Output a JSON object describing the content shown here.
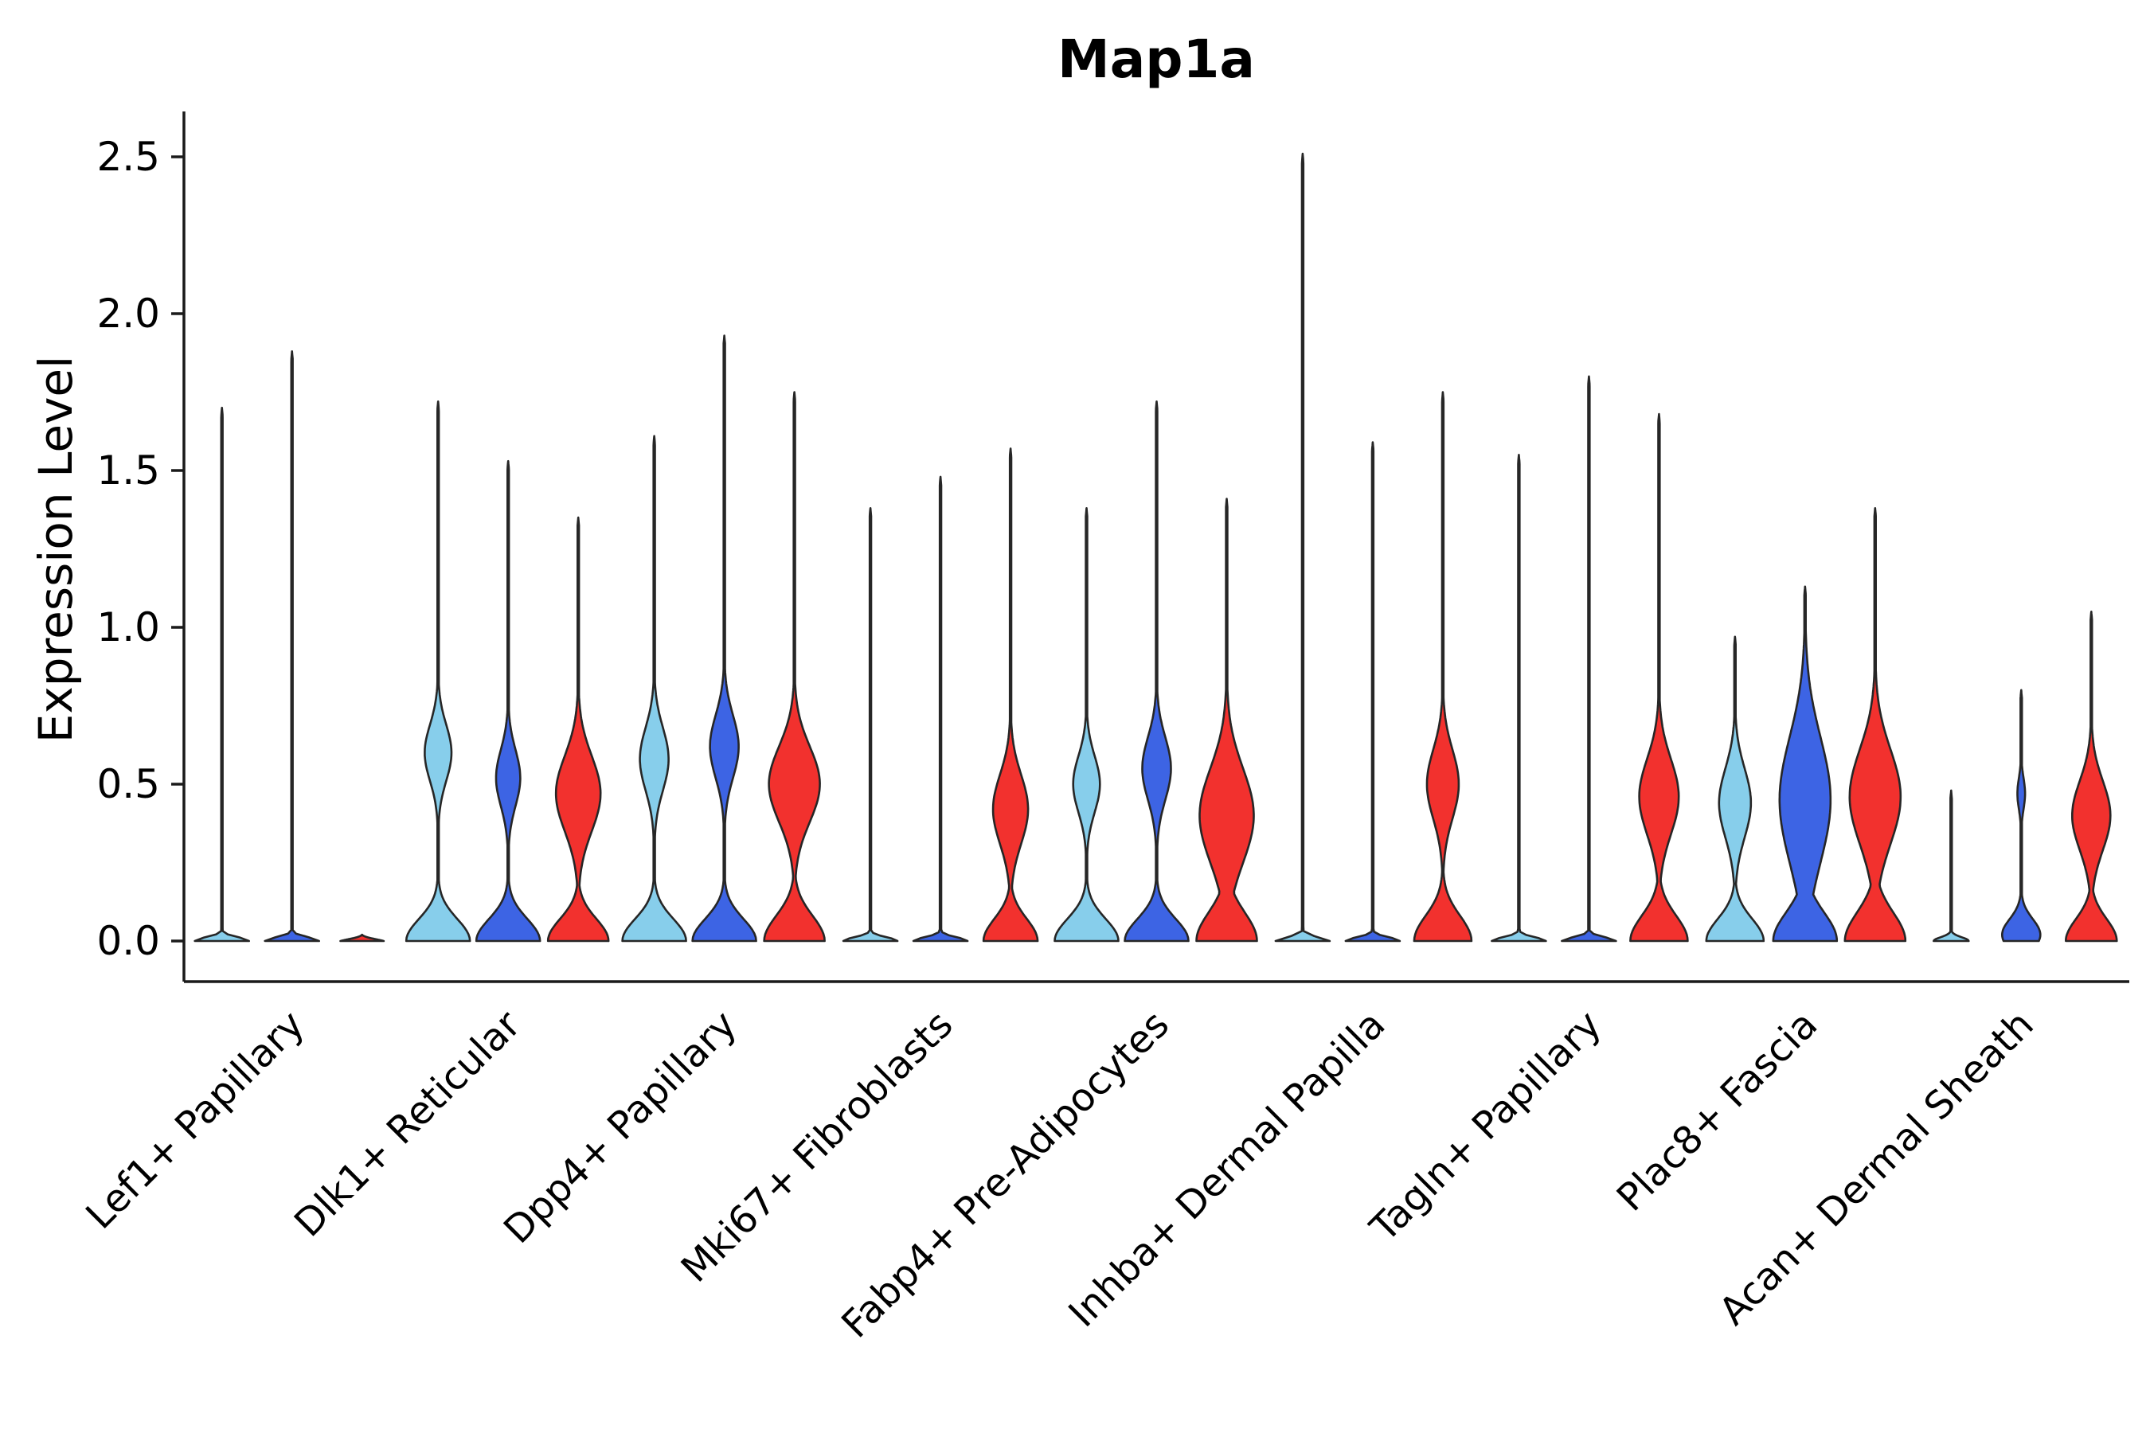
{
  "page": {
    "background_color": "#ffffff"
  },
  "chart_data": {
    "type": "violin",
    "title": "Map1a",
    "ylabel": "Expression Level",
    "xlabel": "",
    "grid": false,
    "legend_position": "none",
    "outline_color": "#262626",
    "axis_color": "#1a1a1a",
    "ylim": [
      -0.13,
      2.62
    ],
    "ytick_values": [
      0.0,
      0.5,
      1.0,
      1.5,
      2.0,
      2.5
    ],
    "ytick_labels": [
      "0.0",
      "0.5",
      "1.0",
      "1.5",
      "2.0",
      "2.5"
    ],
    "categories": [
      "Lef1+ Papillary",
      "Dlk1+ Reticular",
      "Dpp4+ Papillary",
      "Mki67+ Fibroblasts",
      "Fabp4+ Pre-Adipocytes",
      "Inhba+ Dermal Papilla",
      "Tagln+ Papillary",
      "Plac8+ Fascia",
      "Acan+ Dermal Sheath"
    ],
    "series": [
      {
        "name": "group-lightblue",
        "color": "#87CEEB"
      },
      {
        "name": "group-blue",
        "color": "#3D64E4"
      },
      {
        "name": "group-red",
        "color": "#F2312E"
      }
    ],
    "violins": [
      {
        "category": "Lef1+ Papillary",
        "groups": [
          {
            "series": 0,
            "max": 1.7,
            "profile": [
              {
                "c": 0,
                "s": 0.012,
                "w": 0.85
              }
            ]
          },
          {
            "series": 1,
            "max": 1.88,
            "profile": [
              {
                "c": 0,
                "s": 0.012,
                "w": 0.85
              }
            ]
          },
          {
            "series": 2,
            "max": 0.02,
            "profile": [
              {
                "c": 0,
                "s": 0.012,
                "w": 0.85
              }
            ]
          }
        ]
      },
      {
        "category": "Dlk1+ Reticular",
        "groups": [
          {
            "series": 0,
            "max": 1.72,
            "profile": [
              {
                "c": 0,
                "s": 0.07,
                "w": 1.0
              },
              {
                "c": 0.6,
                "s": 0.09,
                "w": 0.42
              }
            ]
          },
          {
            "series": 1,
            "max": 1.53,
            "profile": [
              {
                "c": 0,
                "s": 0.07,
                "w": 1.0
              },
              {
                "c": 0.52,
                "s": 0.09,
                "w": 0.38
              }
            ]
          },
          {
            "series": 2,
            "max": 1.35,
            "profile": [
              {
                "c": 0,
                "s": 0.07,
                "w": 0.95
              },
              {
                "c": 0.47,
                "s": 0.12,
                "w": 0.7
              }
            ]
          }
        ]
      },
      {
        "category": "Dpp4+ Papillary",
        "groups": [
          {
            "series": 0,
            "max": 1.61,
            "profile": [
              {
                "c": 0,
                "s": 0.07,
                "w": 1.0
              },
              {
                "c": 0.58,
                "s": 0.1,
                "w": 0.45
              }
            ]
          },
          {
            "series": 1,
            "max": 1.93,
            "profile": [
              {
                "c": 0,
                "s": 0.07,
                "w": 1.0
              },
              {
                "c": 0.62,
                "s": 0.1,
                "w": 0.45
              }
            ]
          },
          {
            "series": 2,
            "max": 1.75,
            "profile": [
              {
                "c": 0,
                "s": 0.08,
                "w": 0.95
              },
              {
                "c": 0.5,
                "s": 0.12,
                "w": 0.8
              }
            ]
          }
        ]
      },
      {
        "category": "Mki67+ Fibroblasts",
        "groups": [
          {
            "series": 0,
            "max": 1.38,
            "profile": [
              {
                "c": 0,
                "s": 0.012,
                "w": 0.85
              }
            ]
          },
          {
            "series": 1,
            "max": 1.48,
            "profile": [
              {
                "c": 0,
                "s": 0.012,
                "w": 0.85
              }
            ]
          },
          {
            "series": 2,
            "max": 1.57,
            "profile": [
              {
                "c": 0,
                "s": 0.07,
                "w": 0.85
              },
              {
                "c": 0.42,
                "s": 0.11,
                "w": 0.55
              }
            ]
          }
        ]
      },
      {
        "category": "Fabp4+ Pre-Adipocytes",
        "groups": [
          {
            "series": 0,
            "max": 1.38,
            "profile": [
              {
                "c": 0,
                "s": 0.07,
                "w": 1.0
              },
              {
                "c": 0.5,
                "s": 0.09,
                "w": 0.42
              }
            ]
          },
          {
            "series": 1,
            "max": 1.72,
            "profile": [
              {
                "c": 0,
                "s": 0.07,
                "w": 1.0
              },
              {
                "c": 0.55,
                "s": 0.1,
                "w": 0.45
              }
            ]
          },
          {
            "series": 2,
            "max": 1.41,
            "profile": [
              {
                "c": 0,
                "s": 0.09,
                "w": 0.95
              },
              {
                "c": 0.4,
                "s": 0.15,
                "w": 0.85
              }
            ]
          }
        ]
      },
      {
        "category": "Inhba+ Dermal Papilla",
        "groups": [
          {
            "series": 0,
            "max": 2.51,
            "profile": [
              {
                "c": 0,
                "s": 0.012,
                "w": 0.85
              }
            ]
          },
          {
            "series": 1,
            "max": 1.59,
            "profile": [
              {
                "c": 0,
                "s": 0.012,
                "w": 0.85
              }
            ]
          },
          {
            "series": 2,
            "max": 1.75,
            "profile": [
              {
                "c": 0,
                "s": 0.08,
                "w": 0.9
              },
              {
                "c": 0.5,
                "s": 0.11,
                "w": 0.5
              }
            ]
          }
        ]
      },
      {
        "category": "Tagln+ Papillary",
        "groups": [
          {
            "series": 0,
            "max": 1.55,
            "profile": [
              {
                "c": 0,
                "s": 0.012,
                "w": 0.85
              }
            ]
          },
          {
            "series": 1,
            "max": 1.8,
            "profile": [
              {
                "c": 0,
                "s": 0.012,
                "w": 0.85
              }
            ]
          },
          {
            "series": 2,
            "max": 1.68,
            "profile": [
              {
                "c": 0,
                "s": 0.08,
                "w": 0.9
              },
              {
                "c": 0.46,
                "s": 0.12,
                "w": 0.62
              }
            ]
          }
        ]
      },
      {
        "category": "Plac8+ Fascia",
        "groups": [
          {
            "series": 0,
            "max": 0.97,
            "profile": [
              {
                "c": 0,
                "s": 0.07,
                "w": 0.9
              },
              {
                "c": 0.44,
                "s": 0.11,
                "w": 0.5
              }
            ]
          },
          {
            "series": 1,
            "max": 1.13,
            "profile": [
              {
                "c": 0,
                "s": 0.09,
                "w": 1.0
              },
              {
                "c": 0.45,
                "s": 0.2,
                "w": 0.8
              }
            ]
          },
          {
            "series": 2,
            "max": 1.38,
            "profile": [
              {
                "c": 0,
                "s": 0.09,
                "w": 0.95
              },
              {
                "c": 0.46,
                "s": 0.15,
                "w": 0.8
              }
            ]
          }
        ]
      },
      {
        "category": "Acan+ Dermal Sheath",
        "groups": [
          {
            "series": 0,
            "max": 0.48,
            "profile": [
              {
                "c": 0,
                "s": 0.012,
                "w": 0.55
              }
            ]
          },
          {
            "series": 1,
            "max": 0.8,
            "profile": [
              {
                "c": 0.02,
                "s": 0.05,
                "w": 0.6
              },
              {
                "c": 0.47,
                "s": 0.05,
                "w": 0.12
              }
            ]
          },
          {
            "series": 2,
            "max": 1.05,
            "profile": [
              {
                "c": 0,
                "s": 0.07,
                "w": 0.8
              },
              {
                "c": 0.4,
                "s": 0.11,
                "w": 0.6
              }
            ]
          }
        ]
      }
    ]
  }
}
